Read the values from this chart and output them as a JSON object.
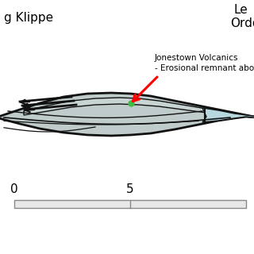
{
  "bg_color": "#ffffff",
  "title_left": "g Klippe",
  "title_right_line1": "Le",
  "title_right_line2": "Ordo",
  "annotation_text": "Jonestown Volcanics\n- Erosional remnant above t",
  "scale_0": "0",
  "scale_5": "5",
  "main_body_color": "#c0cccc",
  "light_blue_color": "#b8d8e0",
  "green_spot_color": "#44bb44",
  "outline_color": "#111111",
  "font_size_title": 11,
  "font_size_annotation": 7.5,
  "font_size_scale": 11
}
